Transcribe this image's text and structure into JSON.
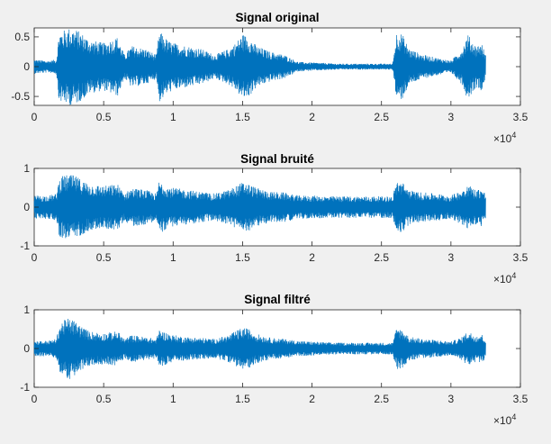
{
  "figure": {
    "background": "#f0f0f0"
  },
  "chart_data": [
    {
      "type": "line",
      "title": "Signal original",
      "xlabel": "",
      "ylabel": "",
      "xlim": [
        0,
        35000
      ],
      "ylim": [
        -0.65,
        0.65
      ],
      "xticks": [
        0,
        5000,
        10000,
        15000,
        20000,
        25000,
        30000,
        35000
      ],
      "xtick_labels": [
        "0",
        "0.5",
        "1",
        "1.5",
        "2",
        "2.5",
        "3",
        "3.5"
      ],
      "yticks": [
        -0.5,
        0,
        0.5
      ],
      "ytick_labels": [
        "-0.5",
        "0",
        "0.5"
      ],
      "x_exponent": {
        "base": "×10",
        "power": "4"
      },
      "grid": false,
      "series": [
        {
          "color": "#0072bd",
          "x_range": [
            0,
            32500
          ],
          "envelope": {
            "x": [
              0,
              1000,
              1600,
              1800,
              2000,
              2500,
              3000,
              3500,
              4000,
              5000,
              6000,
              6500,
              7000,
              8000,
              8800,
              9000,
              9200,
              9600,
              10000,
              11000,
              12000,
              13000,
              14000,
              14500,
              15000,
              15500,
              16000,
              17000,
              18000,
              19000,
              20000,
              21000,
              22000,
              23000,
              24000,
              25000,
              25800,
              26100,
              26500,
              27000,
              27500,
              28000,
              29000,
              30000,
              30800,
              31200,
              31800,
              32200,
              32500
            ],
            "amp": [
              0.12,
              0.1,
              0.12,
              0.6,
              0.6,
              0.65,
              0.63,
              0.55,
              0.45,
              0.4,
              0.5,
              0.2,
              0.35,
              0.3,
              0.2,
              0.6,
              0.55,
              0.45,
              0.4,
              0.35,
              0.3,
              0.2,
              0.3,
              0.4,
              0.55,
              0.5,
              0.35,
              0.25,
              0.2,
              0.08,
              0.07,
              0.06,
              0.05,
              0.05,
              0.05,
              0.05,
              0.05,
              0.6,
              0.55,
              0.3,
              0.25,
              0.2,
              0.15,
              0.1,
              0.3,
              0.55,
              0.35,
              0.4,
              0.2
            ]
          }
        }
      ]
    },
    {
      "type": "line",
      "title": "Signal bruité",
      "xlabel": "",
      "ylabel": "",
      "xlim": [
        0,
        35000
      ],
      "ylim": [
        -1,
        1
      ],
      "xticks": [
        0,
        5000,
        10000,
        15000,
        20000,
        25000,
        30000,
        35000
      ],
      "xtick_labels": [
        "0",
        "0.5",
        "1",
        "1.5",
        "2",
        "2.5",
        "3",
        "3.5"
      ],
      "yticks": [
        -1,
        0,
        1
      ],
      "ytick_labels": [
        "-1",
        "0",
        "1"
      ],
      "x_exponent": {
        "base": "×10",
        "power": "4"
      },
      "grid": false,
      "series": [
        {
          "color": "#0072bd",
          "x_range": [
            0,
            32500
          ],
          "envelope": {
            "x": [
              0,
              1000,
              1600,
              1800,
              2000,
              2500,
              3000,
              3500,
              4000,
              5000,
              6000,
              6500,
              7000,
              8000,
              8800,
              9000,
              9200,
              9600,
              10000,
              11000,
              12000,
              13000,
              14000,
              14500,
              15000,
              15500,
              16000,
              17000,
              18000,
              19000,
              20000,
              21000,
              22000,
              23000,
              24000,
              25000,
              25800,
              26100,
              26500,
              27000,
              27500,
              28000,
              29000,
              30000,
              30800,
              31200,
              31800,
              32200,
              32500
            ],
            "amp": [
              0.3,
              0.3,
              0.35,
              0.75,
              0.8,
              0.85,
              0.8,
              0.7,
              0.6,
              0.55,
              0.6,
              0.35,
              0.5,
              0.45,
              0.35,
              0.7,
              0.65,
              0.55,
              0.5,
              0.45,
              0.4,
              0.35,
              0.45,
              0.55,
              0.65,
              0.6,
              0.5,
              0.4,
              0.38,
              0.3,
              0.3,
              0.28,
              0.28,
              0.28,
              0.28,
              0.28,
              0.28,
              0.7,
              0.65,
              0.45,
              0.4,
              0.38,
              0.35,
              0.3,
              0.45,
              0.6,
              0.45,
              0.5,
              0.35
            ]
          }
        }
      ]
    },
    {
      "type": "line",
      "title": "Signal filtré",
      "xlabel": "",
      "ylabel": "",
      "xlim": [
        0,
        35000
      ],
      "ylim": [
        -1,
        1
      ],
      "xticks": [
        0,
        5000,
        10000,
        15000,
        20000,
        25000,
        30000,
        35000
      ],
      "xtick_labels": [
        "0",
        "0.5",
        "1",
        "1.5",
        "2",
        "2.5",
        "3",
        "3.5"
      ],
      "yticks": [
        -1,
        0,
        1
      ],
      "ytick_labels": [
        "-1",
        "0",
        "1"
      ],
      "x_exponent": {
        "base": "×10",
        "power": "4"
      },
      "grid": false,
      "series": [
        {
          "color": "#0072bd",
          "x_range": [
            0,
            32500
          ],
          "envelope": {
            "x": [
              0,
              1000,
              1600,
              1800,
              2000,
              2500,
              3000,
              3500,
              4000,
              5000,
              6000,
              6500,
              7000,
              8000,
              8800,
              9000,
              9200,
              9600,
              10000,
              11000,
              12000,
              13000,
              14000,
              14500,
              15000,
              15500,
              16000,
              17000,
              18000,
              19000,
              20000,
              21000,
              22000,
              23000,
              24000,
              25000,
              25800,
              26100,
              26500,
              27000,
              27500,
              28000,
              29000,
              30000,
              30800,
              31200,
              31800,
              32200,
              32500
            ],
            "amp": [
              0.2,
              0.2,
              0.25,
              0.6,
              0.7,
              0.8,
              0.7,
              0.55,
              0.45,
              0.4,
              0.45,
              0.25,
              0.35,
              0.3,
              0.25,
              0.5,
              0.45,
              0.4,
              0.35,
              0.3,
              0.28,
              0.25,
              0.35,
              0.45,
              0.55,
              0.5,
              0.38,
              0.28,
              0.25,
              0.2,
              0.18,
              0.16,
              0.15,
              0.15,
              0.15,
              0.15,
              0.15,
              0.55,
              0.5,
              0.3,
              0.28,
              0.25,
              0.22,
              0.18,
              0.3,
              0.45,
              0.35,
              0.38,
              0.25
            ]
          }
        }
      ]
    }
  ]
}
